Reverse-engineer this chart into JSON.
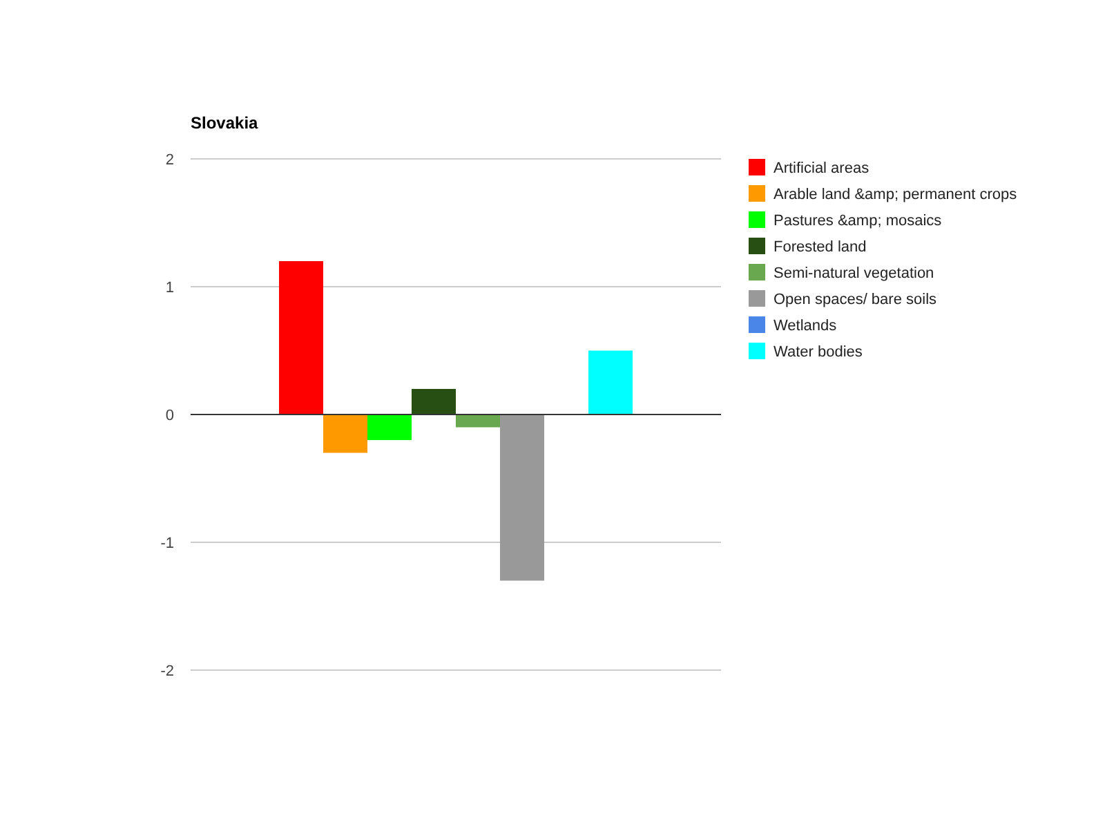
{
  "chart_data": {
    "type": "bar",
    "title": "Slovakia",
    "categories": [
      null
    ],
    "series": [
      {
        "name": "Artificial areas",
        "color": "#ff0000",
        "values": [
          1.2
        ]
      },
      {
        "name": "Arable land &amp; permanent crops",
        "color": "#ff9900",
        "values": [
          -0.3
        ]
      },
      {
        "name": "Pastures &amp; mosaics",
        "color": "#00ff00",
        "values": [
          -0.2
        ]
      },
      {
        "name": "Forested land",
        "color": "#274e13",
        "values": [
          0.2
        ]
      },
      {
        "name": "Semi-natural vegetation",
        "color": "#6aa84f",
        "values": [
          -0.1
        ]
      },
      {
        "name": "Open spaces/ bare soils",
        "color": "#999999",
        "values": [
          -1.3
        ]
      },
      {
        "name": "Wetlands",
        "color": "#4a86e8",
        "values": [
          0
        ]
      },
      {
        "name": "Water bodies",
        "color": "#00ffff",
        "values": [
          0.5
        ]
      }
    ],
    "ylim": [
      -2,
      2
    ],
    "yticks": [
      -2,
      -1,
      0,
      1,
      2
    ],
    "grid": "y",
    "legend": "right"
  }
}
